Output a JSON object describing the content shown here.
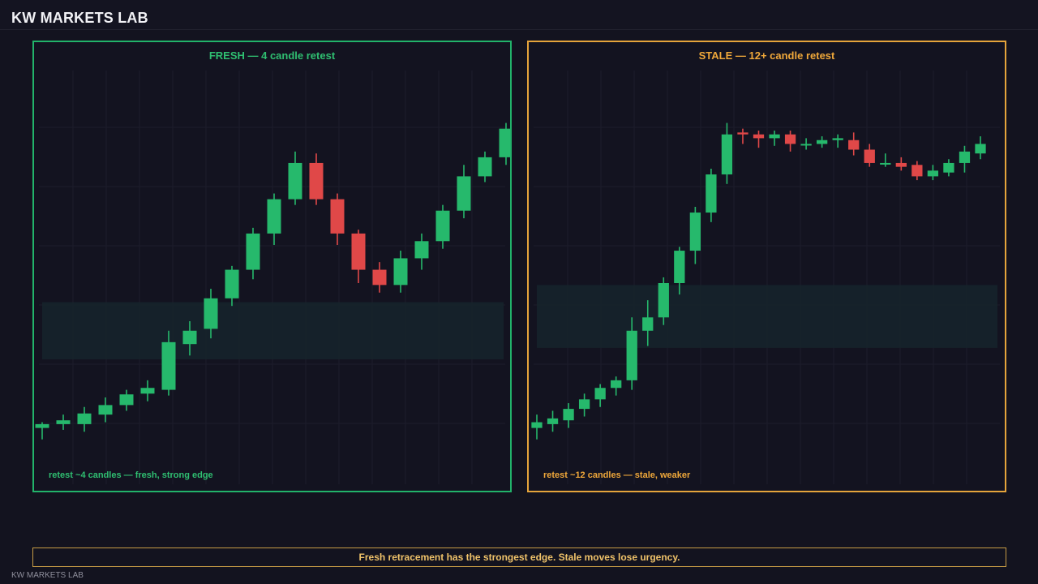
{
  "app": {
    "brand": "KW MARKETS LAB",
    "footer_brand": "KW MARKETS LAB"
  },
  "banner": {
    "text": "Fresh retracement has the strongest edge. Stale moves lose urgency."
  },
  "colors": {
    "background": "#13131f",
    "up": "#26b96c",
    "down": "#e04848",
    "fresh_accent": "#22b36a",
    "stale_accent": "#e5a43b",
    "zone": "#16242b",
    "grid": "#1d1d2b"
  },
  "panels": [
    {
      "title": "FRESH — 4 candle retest",
      "note": "retest ~4 candles — fresh, strong edge"
    },
    {
      "title": "STALE — 12+ candle retest",
      "note": "retest ~12 candles — stale, weaker"
    }
  ],
  "chart_data": [
    {
      "type": "candlestick",
      "title": "FRESH — 4 candle retest",
      "annotation": "retest ~4 candles — fresh, strong edge",
      "grid": true,
      "ylim": [
        0,
        100
      ],
      "zone": {
        "low": 30,
        "high": 45
      },
      "candles": [
        {
          "o": 12.0,
          "h": 13.5,
          "l": 9.0,
          "c": 13.0
        },
        {
          "o": 13.0,
          "h": 15.5,
          "l": 11.5,
          "c": 14.0
        },
        {
          "o": 13.0,
          "h": 17.5,
          "l": 11.0,
          "c": 15.8
        },
        {
          "o": 15.5,
          "h": 20.0,
          "l": 13.5,
          "c": 18.0
        },
        {
          "o": 18.0,
          "h": 22.0,
          "l": 16.5,
          "c": 20.8
        },
        {
          "o": 21.0,
          "h": 24.5,
          "l": 19.0,
          "c": 22.5
        },
        {
          "o": 22.0,
          "h": 37.5,
          "l": 20.5,
          "c": 34.5
        },
        {
          "o": 34.0,
          "h": 40.0,
          "l": 31.0,
          "c": 37.5
        },
        {
          "o": 38.0,
          "h": 48.5,
          "l": 35.5,
          "c": 46.0
        },
        {
          "o": 46.0,
          "h": 54.5,
          "l": 44.0,
          "c": 53.5
        },
        {
          "o": 53.5,
          "h": 64.5,
          "l": 51.0,
          "c": 63.0
        },
        {
          "o": 63.0,
          "h": 73.5,
          "l": 60.0,
          "c": 72.0
        },
        {
          "o": 72.0,
          "h": 84.5,
          "l": 70.5,
          "c": 81.5
        },
        {
          "o": 81.5,
          "h": 84.0,
          "l": 70.5,
          "c": 72.0
        },
        {
          "o": 72.0,
          "h": 73.5,
          "l": 60.0,
          "c": 63.0
        },
        {
          "o": 63.0,
          "h": 64.0,
          "l": 50.0,
          "c": 53.5
        },
        {
          "o": 53.5,
          "h": 55.5,
          "l": 47.5,
          "c": 49.5
        },
        {
          "o": 49.5,
          "h": 58.5,
          "l": 47.5,
          "c": 56.5
        },
        {
          "o": 56.5,
          "h": 63.0,
          "l": 53.5,
          "c": 61.0
        },
        {
          "o": 61.0,
          "h": 70.5,
          "l": 59.0,
          "c": 69.0
        },
        {
          "o": 69.0,
          "h": 81.0,
          "l": 67.0,
          "c": 78.0
        },
        {
          "o": 78.0,
          "h": 84.5,
          "l": 76.5,
          "c": 83.0
        },
        {
          "o": 83.0,
          "h": 92.0,
          "l": 81.0,
          "c": 90.5
        }
      ]
    },
    {
      "type": "candlestick",
      "title": "STALE — 12+ candle retest",
      "annotation": "retest ~12 candles — stale, weaker",
      "grid": true,
      "ylim": [
        0,
        100
      ],
      "zone": {
        "low": 33,
        "high": 49.5
      },
      "candles": [
        {
          "o": 12.0,
          "h": 15.5,
          "l": 9.0,
          "c": 13.5
        },
        {
          "o": 13.0,
          "h": 16.5,
          "l": 11.0,
          "c": 14.5
        },
        {
          "o": 14.0,
          "h": 18.5,
          "l": 12.0,
          "c": 17.0
        },
        {
          "o": 17.0,
          "h": 21.0,
          "l": 15.0,
          "c": 19.5
        },
        {
          "o": 19.5,
          "h": 23.5,
          "l": 17.5,
          "c": 22.5
        },
        {
          "o": 22.5,
          "h": 25.5,
          "l": 20.5,
          "c": 24.5
        },
        {
          "o": 24.5,
          "h": 41.0,
          "l": 22.0,
          "c": 37.5
        },
        {
          "o": 37.5,
          "h": 45.5,
          "l": 33.5,
          "c": 41.0
        },
        {
          "o": 41.0,
          "h": 51.5,
          "l": 39.0,
          "c": 50.0
        },
        {
          "o": 50.0,
          "h": 59.5,
          "l": 47.0,
          "c": 58.5
        },
        {
          "o": 58.5,
          "h": 70.0,
          "l": 55.0,
          "c": 68.5
        },
        {
          "o": 68.5,
          "h": 80.0,
          "l": 66.0,
          "c": 78.5
        },
        {
          "o": 78.5,
          "h": 92.0,
          "l": 76.0,
          "c": 89.0
        },
        {
          "o": 89.5,
          "h": 90.5,
          "l": 86.5,
          "c": 89.0
        },
        {
          "o": 89.0,
          "h": 90.0,
          "l": 85.5,
          "c": 88.0
        },
        {
          "o": 88.0,
          "h": 90.0,
          "l": 86.0,
          "c": 89.0
        },
        {
          "o": 89.0,
          "h": 90.0,
          "l": 84.5,
          "c": 86.5
        },
        {
          "o": 86.5,
          "h": 88.0,
          "l": 85.0,
          "c": 86.5
        },
        {
          "o": 86.5,
          "h": 88.5,
          "l": 85.5,
          "c": 87.5
        },
        {
          "o": 87.5,
          "h": 89.0,
          "l": 85.5,
          "c": 88.0
        },
        {
          "o": 87.5,
          "h": 89.5,
          "l": 83.5,
          "c": 85.0
        },
        {
          "o": 85.0,
          "h": 86.5,
          "l": 80.5,
          "c": 81.5
        },
        {
          "o": 81.5,
          "h": 84.0,
          "l": 80.5,
          "c": 81.5
        },
        {
          "o": 81.5,
          "h": 83.0,
          "l": 79.5,
          "c": 80.5
        },
        {
          "o": 81.0,
          "h": 82.0,
          "l": 77.0,
          "c": 78.0
        },
        {
          "o": 78.0,
          "h": 81.0,
          "l": 77.0,
          "c": 79.5
        },
        {
          "o": 79.0,
          "h": 82.5,
          "l": 78.0,
          "c": 81.5
        },
        {
          "o": 81.5,
          "h": 86.0,
          "l": 79.0,
          "c": 84.5
        },
        {
          "o": 84.0,
          "h": 88.5,
          "l": 82.5,
          "c": 86.5
        }
      ]
    }
  ]
}
